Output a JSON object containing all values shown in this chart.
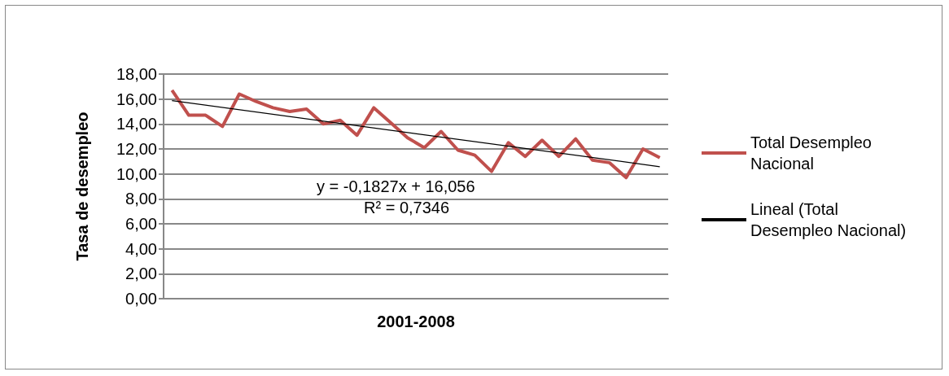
{
  "chart_data": {
    "type": "line",
    "xlabel": "2001-2008",
    "ylabel": "Tasa de desempleo",
    "categories": [
      null,
      null,
      null,
      null,
      null,
      null,
      null,
      null,
      null,
      null,
      null,
      null,
      null,
      null,
      null,
      null,
      null,
      null,
      null,
      null,
      null,
      null,
      null,
      null,
      null,
      null,
      null,
      null,
      null,
      null
    ],
    "series": [
      {
        "name": "Total Desempleo Nacional",
        "color": "#c0504d",
        "values": [
          16.7,
          14.7,
          14.7,
          13.8,
          16.4,
          15.8,
          15.3,
          15.0,
          15.2,
          14.0,
          14.3,
          13.1,
          15.3,
          14.1,
          12.9,
          12.1,
          13.4,
          11.9,
          11.5,
          10.2,
          12.5,
          11.4,
          12.7,
          11.4,
          12.8,
          11.1,
          10.9,
          9.7,
          12.0,
          11.3
        ]
      },
      {
        "name": "Lineal (Total Desempleo Nacional)",
        "color": "#000000",
        "values": [
          15.87,
          null,
          null,
          null,
          null,
          null,
          null,
          null,
          null,
          null,
          null,
          null,
          null,
          null,
          null,
          null,
          null,
          null,
          null,
          null,
          null,
          null,
          null,
          null,
          null,
          null,
          null,
          null,
          null,
          10.58
        ]
      }
    ],
    "ylim": [
      0,
      18
    ],
    "yticks": [
      {
        "value": 0,
        "label": "0,00"
      },
      {
        "value": 2,
        "label": "2,00"
      },
      {
        "value": 4,
        "label": "4,00"
      },
      {
        "value": 6,
        "label": "6,00"
      },
      {
        "value": 8,
        "label": "8,00"
      },
      {
        "value": 10,
        "label": "10,00"
      },
      {
        "value": 12,
        "label": "12,00"
      },
      {
        "value": 14,
        "label": "14,00"
      },
      {
        "value": 16,
        "label": "16,00"
      },
      {
        "value": 18,
        "label": "18,00"
      }
    ],
    "grid": "y",
    "legend": "right",
    "marker": "none",
    "annotations": [
      "y = -0,1827x + 16,056",
      "R² = 0,7346"
    ]
  }
}
